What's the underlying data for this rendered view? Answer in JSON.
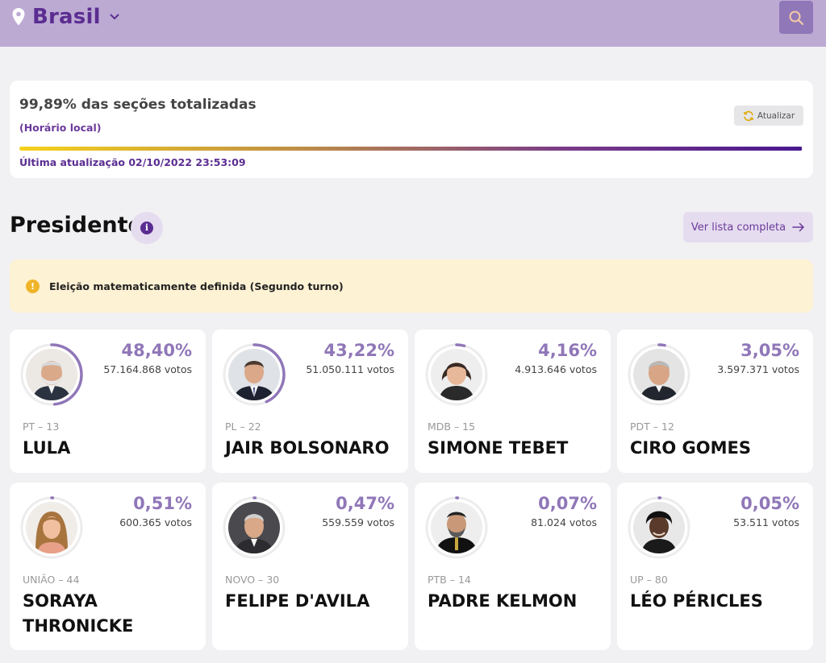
{
  "header": {
    "location": "Brasil",
    "colors": {
      "bar": "#bcaad3",
      "accent": "#5b2d91"
    },
    "icons": {
      "location": "location-pin-icon",
      "dropdown": "chevron-down-icon",
      "search": "search-icon"
    }
  },
  "status": {
    "percent_text": "99,89% das seções totalizadas",
    "progress": 99.89,
    "local_time_label": "(Horário local)",
    "refresh_label": "Atualizar",
    "last_update": "Última atualização 02/10/2022 23:53:09"
  },
  "section": {
    "title": "Presidente",
    "list_button": "Ver lista completa",
    "alert": "Eleição matematicamente definida (Segundo turno)"
  },
  "candidates": [
    {
      "id": "lula",
      "percent": "48,40%",
      "share": 48.4,
      "votes": "57.164.868 votos",
      "party": "PT – 13",
      "name": "LULA"
    },
    {
      "id": "bolsonaro",
      "percent": "43,22%",
      "share": 43.22,
      "votes": "51.050.111 votos",
      "party": "PL – 22",
      "name": "JAIR BOLSONARO"
    },
    {
      "id": "tebet",
      "percent": "4,16%",
      "share": 4.16,
      "votes": "4.913.646 votos",
      "party": "MDB – 15",
      "name": "SIMONE TEBET"
    },
    {
      "id": "ciro",
      "percent": "3,05%",
      "share": 3.05,
      "votes": "3.597.371 votos",
      "party": "PDT – 12",
      "name": "CIRO GOMES"
    },
    {
      "id": "soraya",
      "percent": "0,51%",
      "share": 0.51,
      "votes": "600.365 votos",
      "party": "UNIÃO – 44",
      "name": "SORAYA THRONICKE"
    },
    {
      "id": "davila",
      "percent": "0,47%",
      "share": 0.47,
      "votes": "559.559 votos",
      "party": "NOVO – 30",
      "name": "FELIPE D'AVILA"
    },
    {
      "id": "kelmon",
      "percent": "0,07%",
      "share": 0.07,
      "votes": "81.024 votos",
      "party": "PTB – 14",
      "name": "PADRE KELMON"
    },
    {
      "id": "pericles",
      "percent": "0,05%",
      "share": 0.05,
      "votes": "53.511 votos",
      "party": "UP – 80",
      "name": "LÉO PÉRICLES"
    }
  ]
}
